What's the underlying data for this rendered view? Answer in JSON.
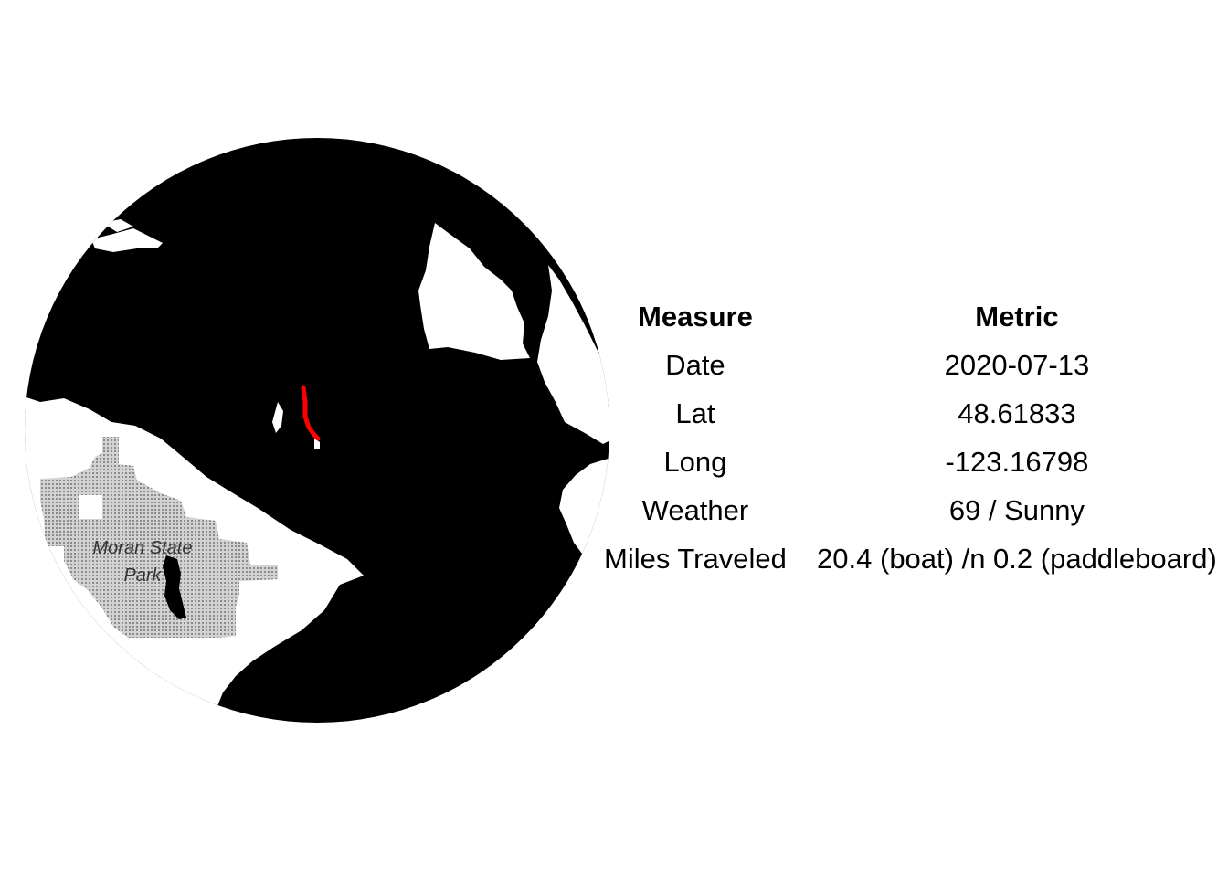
{
  "map": {
    "land_label": "Moran State Park",
    "land_label_lines": [
      "Moran State",
      "Park"
    ],
    "colors": {
      "water": "#000000",
      "land": "#ffffff",
      "park_fill": "#bcbcbc",
      "track": "#ff0000"
    }
  },
  "table": {
    "headers": {
      "measure": "Measure",
      "metric": "Metric"
    },
    "rows": [
      {
        "measure": "Date",
        "metric": "2020-07-13"
      },
      {
        "measure": "Lat",
        "metric": "48.61833"
      },
      {
        "measure": "Long",
        "metric": "-123.16798"
      },
      {
        "measure": "Weather",
        "metric": "69 / Sunny"
      },
      {
        "measure": "Miles Traveled",
        "metric": "20.4 (boat) /n 0.2 (paddleboard)"
      }
    ]
  }
}
